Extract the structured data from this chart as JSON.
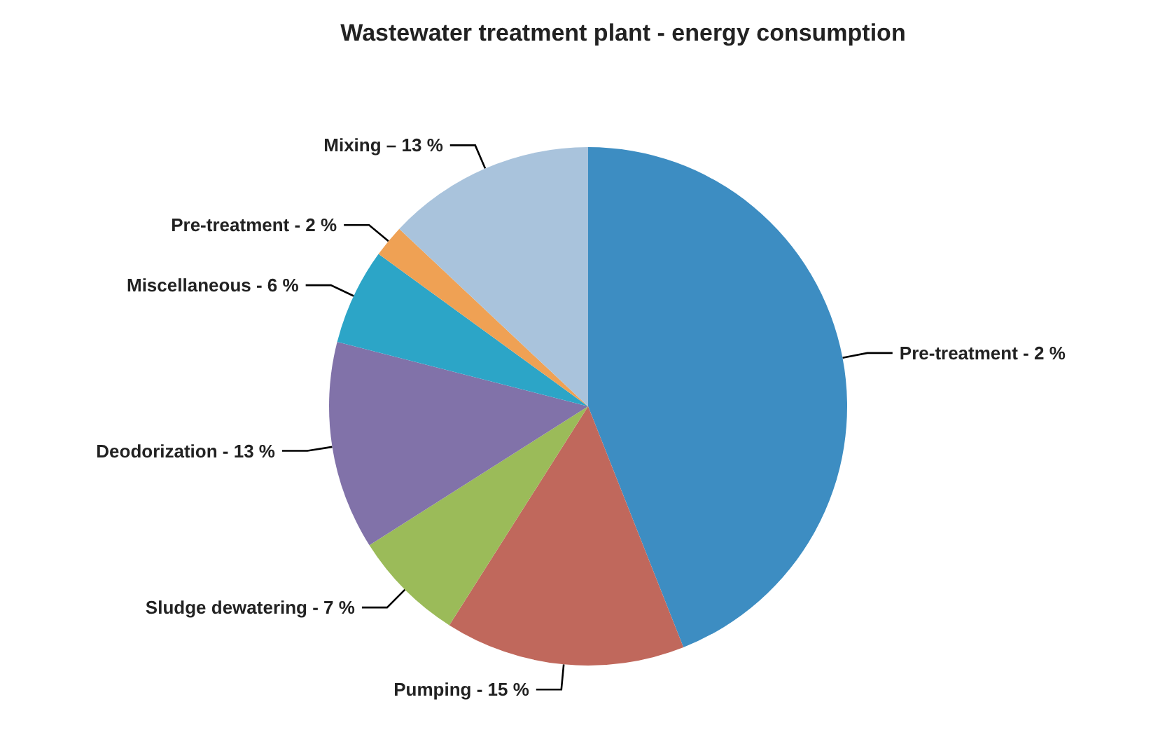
{
  "chart_data": {
    "type": "pie",
    "title": "Wastewater treatment plant - energy consumption",
    "categories": [
      "Pre-treatment - 2 %",
      "Pumping - 15 %",
      "Sludge dewatering - 7 %",
      "Deodorization - 13 %",
      "Miscellaneous - 6 %",
      "Pre-treatment - 2 %",
      "Mixing – 13 %"
    ],
    "values": [
      44,
      15,
      7,
      13,
      6,
      2,
      13
    ],
    "colors": [
      "#3d8dc2",
      "#c0685c",
      "#9bbb59",
      "#8172a9",
      "#2ca5c7",
      "#efa154",
      "#a9c3dc"
    ],
    "legend": false
  }
}
